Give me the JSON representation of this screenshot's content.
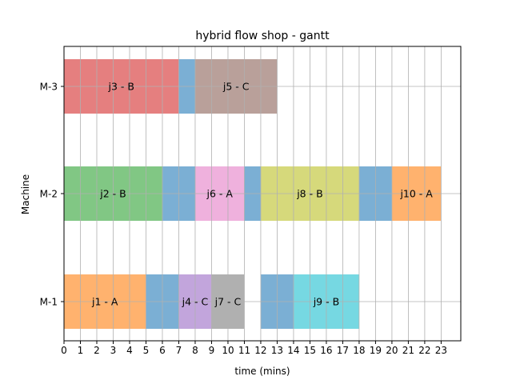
{
  "chart_data": {
    "type": "gantt",
    "title": "hybrid flow shop - gantt",
    "xlabel": "time (mins)",
    "ylabel": "Machine",
    "xlim": [
      0,
      24.2
    ],
    "x_ticks": [
      0,
      1,
      2,
      3,
      4,
      5,
      6,
      7,
      8,
      9,
      10,
      11,
      12,
      13,
      14,
      15,
      16,
      17,
      18,
      19,
      20,
      21,
      22,
      23
    ],
    "grid": true,
    "machines": [
      "M-1",
      "M-2",
      "M-3"
    ],
    "setup_color": "#7bafd4",
    "tasks": [
      {
        "machine": "M-3",
        "label": "j3 - B",
        "start": 0,
        "end": 7,
        "color": "#e57f7f"
      },
      {
        "machine": "M-3",
        "label": "",
        "start": 7,
        "end": 8,
        "color": "#7bafd4"
      },
      {
        "machine": "M-3",
        "label": "j5 - C",
        "start": 8,
        "end": 13,
        "color": "#b9a09a"
      },
      {
        "machine": "M-2",
        "label": "j2 - B",
        "start": 0,
        "end": 6,
        "color": "#81c784"
      },
      {
        "machine": "M-2",
        "label": "",
        "start": 6,
        "end": 8,
        "color": "#7bafd4"
      },
      {
        "machine": "M-2",
        "label": "j6 - A",
        "start": 8,
        "end": 11,
        "color": "#efb1dd"
      },
      {
        "machine": "M-2",
        "label": "",
        "start": 11,
        "end": 12,
        "color": "#7bafd4"
      },
      {
        "machine": "M-2",
        "label": "j8 - B",
        "start": 12,
        "end": 18,
        "color": "#d6d97b"
      },
      {
        "machine": "M-2",
        "label": "",
        "start": 18,
        "end": 20,
        "color": "#7bafd4"
      },
      {
        "machine": "M-2",
        "label": "j10 - A",
        "start": 20,
        "end": 23,
        "color": "#ffb26e"
      },
      {
        "machine": "M-1",
        "label": "j1 - A",
        "start": 0,
        "end": 5,
        "color": "#ffb26e"
      },
      {
        "machine": "M-1",
        "label": "",
        "start": 5,
        "end": 7,
        "color": "#7bafd4"
      },
      {
        "machine": "M-1",
        "label": "j4 - C",
        "start": 7,
        "end": 9,
        "color": "#c2a5dc"
      },
      {
        "machine": "M-1",
        "label": "j7 - C",
        "start": 9,
        "end": 11,
        "color": "#b0b0b0"
      },
      {
        "machine": "M-1",
        "label": "",
        "start": 12,
        "end": 14,
        "color": "#7bafd4"
      },
      {
        "machine": "M-1",
        "label": "j9 - B",
        "start": 14,
        "end": 18,
        "color": "#76d8e2"
      }
    ]
  }
}
